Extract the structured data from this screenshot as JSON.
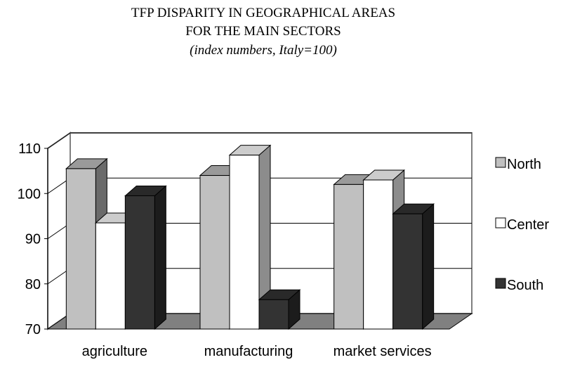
{
  "chart_data": {
    "type": "bar3d",
    "title": "TFP DISPARITY IN GEOGRAPHICAL AREAS",
    "title_line2": "FOR THE MAIN SECTORS",
    "subtitle": "(index numbers, Italy=100)",
    "categories": [
      "agriculture",
      "manufacturing",
      "market services"
    ],
    "series": [
      {
        "name": "North",
        "color": "#c0c0c0",
        "values": [
          105.5,
          104,
          102
        ]
      },
      {
        "name": "Center",
        "color": "#ffffff",
        "values": [
          93.5,
          108.5,
          103
        ]
      },
      {
        "name": "South",
        "color": "#333333",
        "values": [
          99.5,
          76.5,
          95.5
        ]
      }
    ],
    "ylim": [
      70,
      110
    ],
    "yticks": [
      70,
      80,
      90,
      100,
      110
    ],
    "grid": true,
    "legend": "right"
  }
}
